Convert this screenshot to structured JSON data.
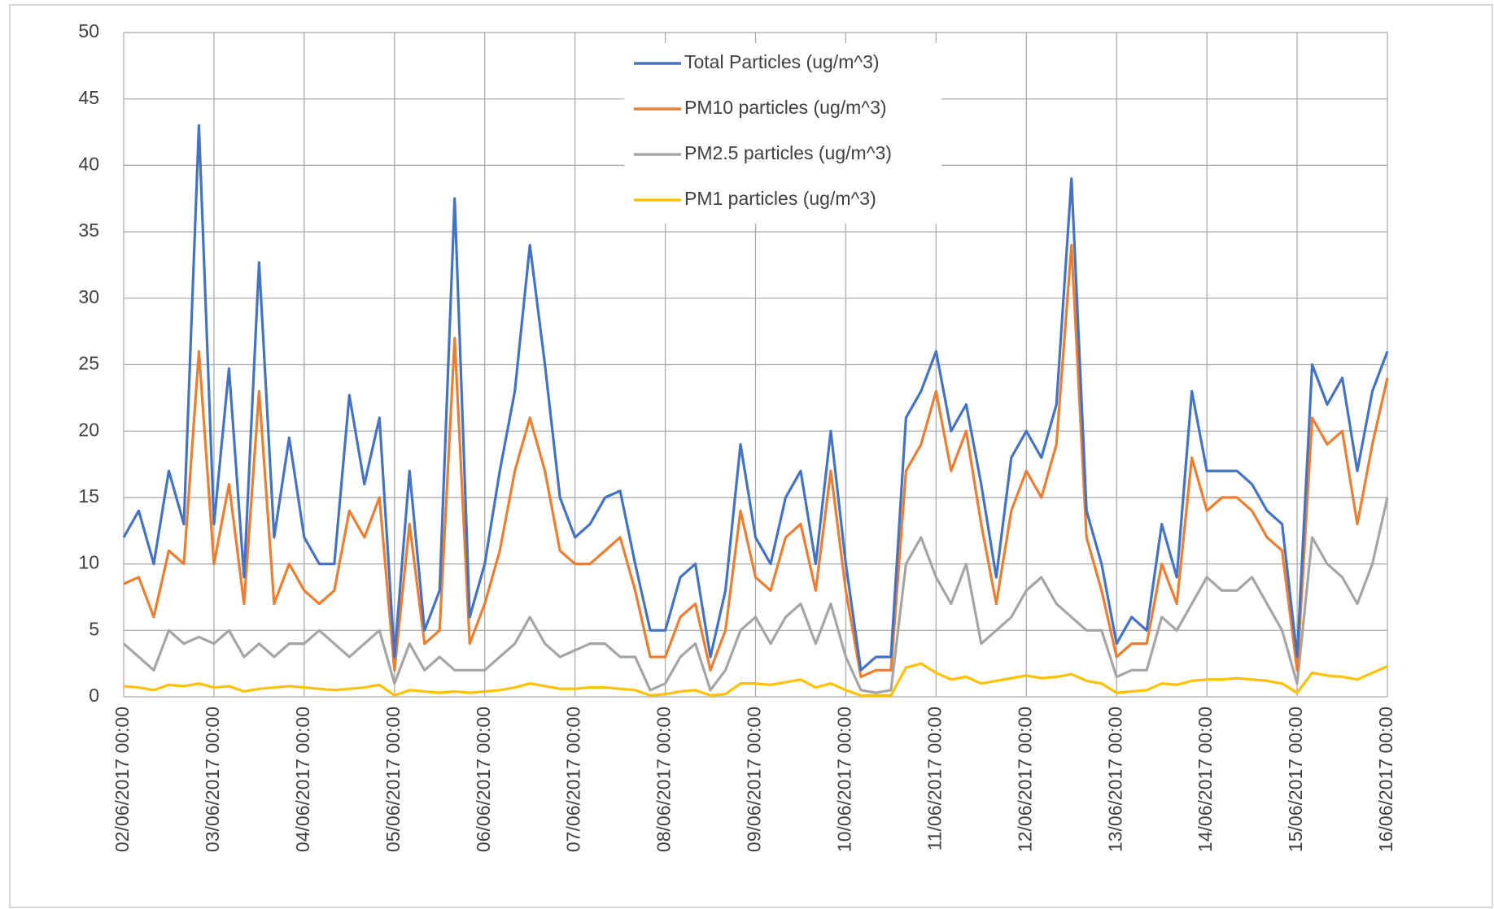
{
  "chart_data": {
    "type": "line",
    "x": [
      "02/06/2017 00:00",
      "02/06/2017 04:00",
      "02/06/2017 08:00",
      "02/06/2017 12:00",
      "02/06/2017 16:00",
      "02/06/2017 20:00",
      "03/06/2017 00:00",
      "03/06/2017 04:00",
      "03/06/2017 08:00",
      "03/06/2017 12:00",
      "03/06/2017 16:00",
      "03/06/2017 20:00",
      "04/06/2017 00:00",
      "04/06/2017 04:00",
      "04/06/2017 08:00",
      "04/06/2017 12:00",
      "04/06/2017 16:00",
      "04/06/2017 20:00",
      "05/06/2017 00:00",
      "05/06/2017 04:00",
      "05/06/2017 08:00",
      "05/06/2017 12:00",
      "05/06/2017 16:00",
      "05/06/2017 20:00",
      "06/06/2017 00:00",
      "06/06/2017 04:00",
      "06/06/2017 08:00",
      "06/06/2017 12:00",
      "06/06/2017 16:00",
      "06/06/2017 20:00",
      "07/06/2017 00:00",
      "07/06/2017 04:00",
      "07/06/2017 08:00",
      "07/06/2017 12:00",
      "07/06/2017 16:00",
      "07/06/2017 20:00",
      "08/06/2017 00:00",
      "08/06/2017 04:00",
      "08/06/2017 08:00",
      "08/06/2017 12:00",
      "08/06/2017 16:00",
      "08/06/2017 20:00",
      "09/06/2017 00:00",
      "09/06/2017 04:00",
      "09/06/2017 08:00",
      "09/06/2017 12:00",
      "09/06/2017 16:00",
      "09/06/2017 20:00",
      "10/06/2017 00:00",
      "10/06/2017 04:00",
      "10/06/2017 08:00",
      "10/06/2017 12:00",
      "10/06/2017 16:00",
      "10/06/2017 20:00",
      "11/06/2017 00:00",
      "11/06/2017 04:00",
      "11/06/2017 08:00",
      "11/06/2017 12:00",
      "11/06/2017 16:00",
      "11/06/2017 20:00",
      "12/06/2017 00:00",
      "12/06/2017 04:00",
      "12/06/2017 08:00",
      "12/06/2017 12:00",
      "12/06/2017 16:00",
      "12/06/2017 20:00",
      "13/06/2017 00:00",
      "13/06/2017 04:00",
      "13/06/2017 08:00",
      "13/06/2017 12:00",
      "13/06/2017 16:00",
      "13/06/2017 20:00",
      "14/06/2017 00:00",
      "14/06/2017 04:00",
      "14/06/2017 08:00",
      "14/06/2017 12:00",
      "14/06/2017 16:00",
      "14/06/2017 20:00",
      "15/06/2017 00:00",
      "15/06/2017 04:00",
      "15/06/2017 08:00",
      "15/06/2017 12:00",
      "15/06/2017 16:00",
      "15/06/2017 20:00",
      "16/06/2017 00:00"
    ],
    "series": [
      {
        "name": "Total Particles (ug/m^3)",
        "color": "#4472c4",
        "values": [
          12,
          14,
          10,
          17,
          13,
          43,
          13,
          24.7,
          9,
          32.7,
          12,
          19.5,
          12,
          10,
          10,
          22.7,
          16,
          21,
          3,
          17,
          5,
          8,
          37.5,
          6,
          10,
          17,
          23,
          34,
          25,
          15,
          12,
          13,
          15,
          15.5,
          10,
          5,
          5,
          9,
          10,
          3,
          8,
          19,
          12,
          10,
          15,
          17,
          10,
          20,
          10,
          2,
          3,
          3,
          21,
          23,
          26,
          20,
          22,
          16,
          9,
          18,
          20,
          18,
          22,
          39,
          14,
          10,
          4,
          6,
          5,
          13,
          9,
          23,
          17,
          17,
          17,
          16,
          14,
          13,
          3,
          25,
          22,
          24,
          17,
          23,
          26
        ]
      },
      {
        "name": "PM10 particles (ug/m^3)",
        "color": "#ed7d31",
        "values": [
          8.5,
          9,
          6,
          11,
          10,
          26,
          10,
          16,
          7,
          23,
          7,
          10,
          8,
          7,
          8,
          14,
          12,
          15,
          2,
          13,
          4,
          5,
          27,
          4,
          7,
          11,
          17,
          21,
          17,
          11,
          10,
          10,
          11,
          12,
          8,
          3,
          3,
          6,
          7,
          2,
          5,
          14,
          9,
          8,
          12,
          13,
          8,
          17,
          8,
          1.5,
          2,
          2,
          17,
          19,
          23,
          17,
          20,
          13,
          7,
          14,
          17,
          15,
          19,
          34,
          12,
          8,
          3,
          4,
          4,
          10,
          7,
          18,
          14,
          15,
          15,
          14,
          12,
          11,
          2,
          21,
          19,
          20,
          13,
          19,
          24
        ]
      },
      {
        "name": "PM2.5 particles (ug/m^3)",
        "color": "#a5a5a5",
        "values": [
          4,
          3,
          2,
          5,
          4,
          4.5,
          4,
          5,
          3,
          4,
          3,
          4,
          4,
          5,
          4,
          3,
          4,
          5,
          1,
          4,
          2,
          3,
          2,
          2,
          2,
          3,
          4,
          6,
          4,
          3,
          3.5,
          4,
          4,
          3,
          3,
          0.5,
          1,
          3,
          4,
          0.5,
          2,
          5,
          6,
          4,
          6,
          7,
          4,
          7,
          3,
          0.5,
          0.3,
          0.5,
          10,
          12,
          9,
          7,
          10,
          4,
          5,
          6,
          8,
          9,
          7,
          6,
          5,
          5,
          1.5,
          2,
          2,
          6,
          5,
          7,
          9,
          8,
          8,
          9,
          7,
          5,
          1,
          12,
          10,
          9,
          7,
          10,
          15
        ]
      },
      {
        "name": "PM1 particles (ug/m^3)",
        "color": "#ffc000",
        "values": [
          0.8,
          0.7,
          0.5,
          0.9,
          0.8,
          1,
          0.7,
          0.8,
          0.4,
          0.6,
          0.7,
          0.8,
          0.7,
          0.6,
          0.5,
          0.6,
          0.7,
          0.9,
          0.1,
          0.5,
          0.4,
          0.3,
          0.4,
          0.3,
          0.4,
          0.5,
          0.7,
          1,
          0.8,
          0.6,
          0.6,
          0.7,
          0.7,
          0.6,
          0.5,
          0.1,
          0.2,
          0.4,
          0.5,
          0.1,
          0.2,
          1,
          1,
          0.9,
          1.1,
          1.3,
          0.7,
          1,
          0.5,
          0.1,
          0.1,
          0.1,
          2.2,
          2.5,
          1.8,
          1.3,
          1.5,
          1,
          1.2,
          1.4,
          1.6,
          1.4,
          1.5,
          1.7,
          1.2,
          1,
          0.3,
          0.4,
          0.5,
          1,
          0.9,
          1.2,
          1.3,
          1.3,
          1.4,
          1.3,
          1.2,
          1,
          0.3,
          1.8,
          1.6,
          1.5,
          1.3,
          1.8,
          2.3
        ]
      }
    ],
    "xlim": [
      "02/06/2017 00:00",
      "16/06/2017 00:00"
    ],
    "xticks": [
      "02/06/2017 00:00",
      "03/06/2017 00:00",
      "04/06/2017 00:00",
      "05/06/2017 00:00",
      "06/06/2017 00:00",
      "07/06/2017 00:00",
      "08/06/2017 00:00",
      "09/06/2017 00:00",
      "10/06/2017 00:00",
      "11/06/2017 00:00",
      "12/06/2017 00:00",
      "13/06/2017 00:00",
      "14/06/2017 00:00",
      "15/06/2017 00:00",
      "16/06/2017 00:00"
    ],
    "ylim": [
      0,
      50
    ],
    "yticks": [
      0,
      5,
      10,
      15,
      20,
      25,
      30,
      35,
      40,
      45,
      50
    ],
    "grid": true,
    "legend": "top"
  }
}
